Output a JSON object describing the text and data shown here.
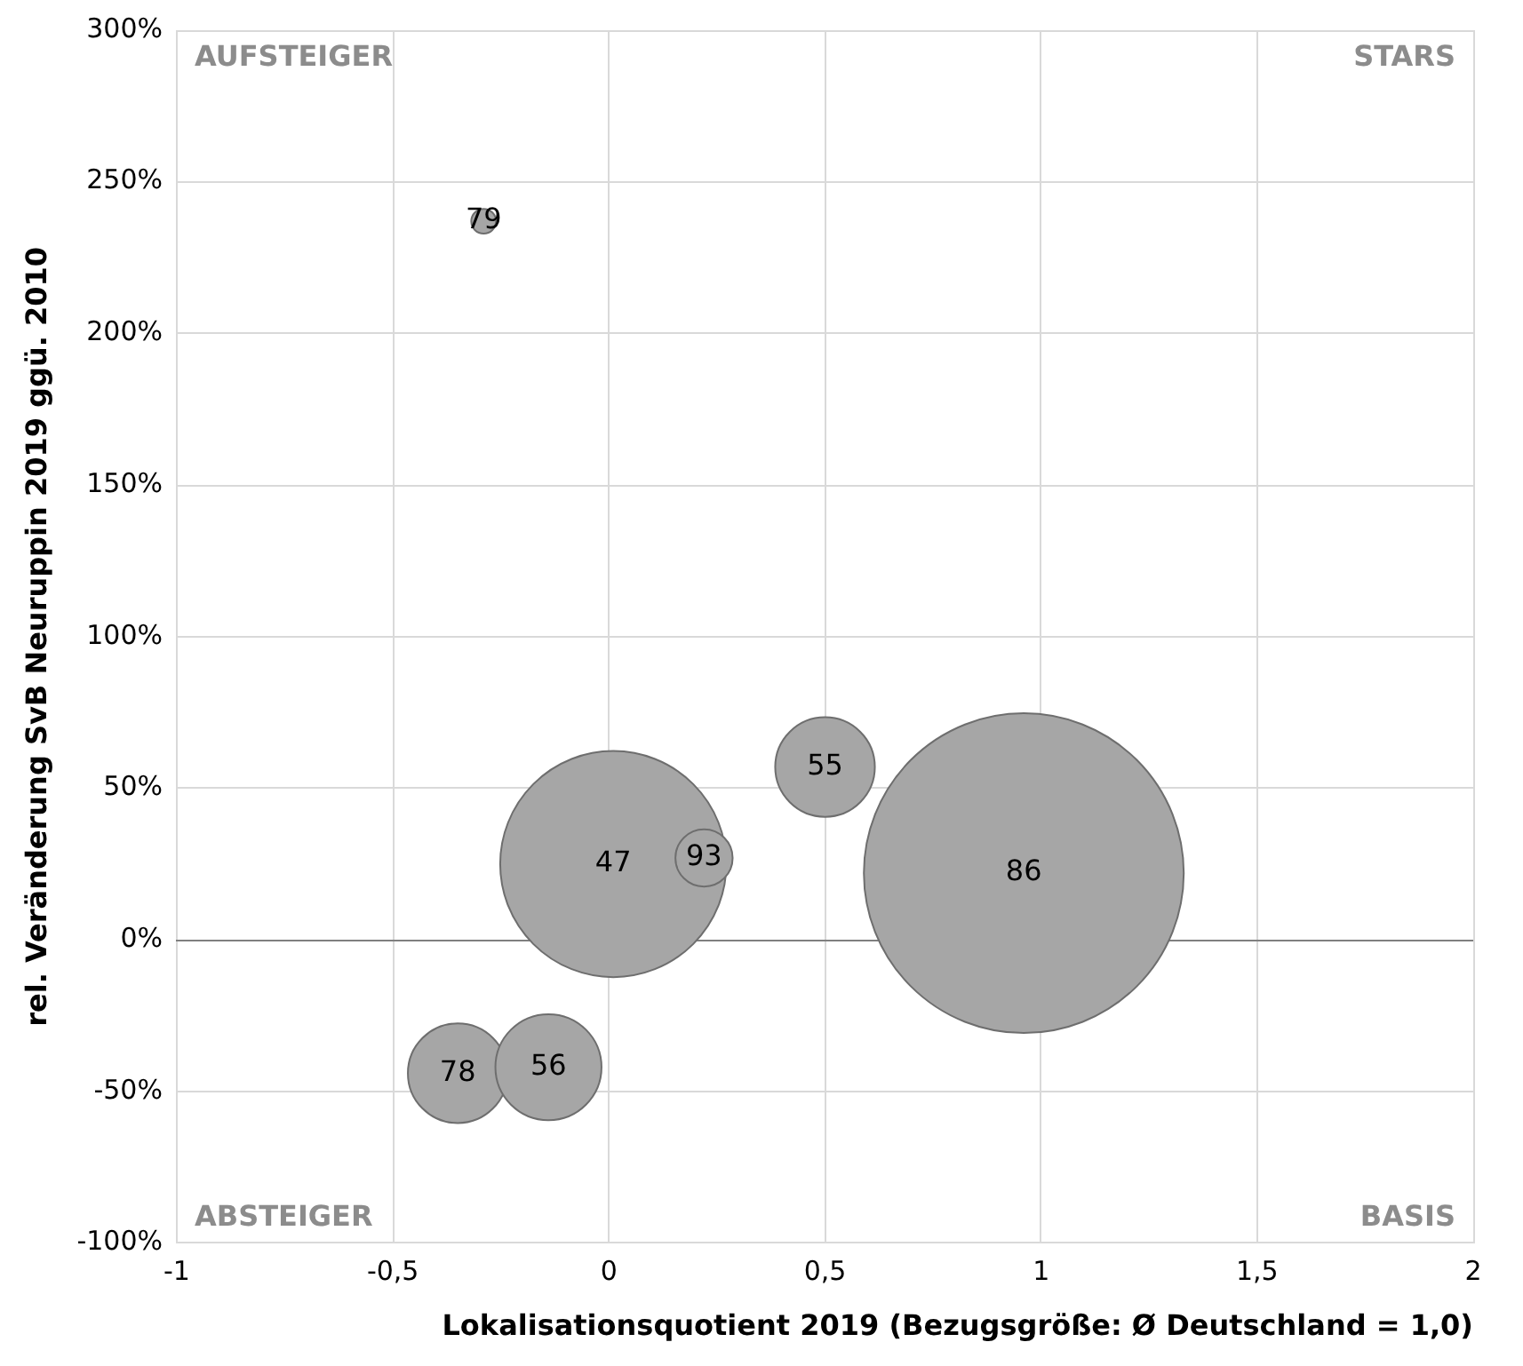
{
  "chart_data": {
    "type": "bubble",
    "xlabel": "Lokalisationsquotient 2019 (Bezugsgröße: Ø Deutschland = 1,0)",
    "ylabel": "rel. Veränderung SvB Neuruppin 2019 ggü. 2010",
    "xlim": [
      -1,
      2
    ],
    "xticks": [
      -1,
      {
        "value": -0.5,
        "label": "-0,5"
      },
      0,
      {
        "value": 0.5,
        "label": "0,5"
      },
      1,
      {
        "value": 1.5,
        "label": "1,5"
      },
      2
    ],
    "ylim": [
      -100,
      300
    ],
    "yticks": [
      {
        "value": -100,
        "label": "-100%"
      },
      {
        "value": -50,
        "label": "-50%"
      },
      {
        "value": 0,
        "label": "0%"
      },
      {
        "value": 50,
        "label": "50%"
      },
      {
        "value": 100,
        "label": "100%"
      },
      {
        "value": 150,
        "label": "150%"
      },
      {
        "value": 200,
        "label": "200%"
      },
      {
        "value": 250,
        "label": "250%"
      },
      {
        "value": 300,
        "label": "300%"
      }
    ],
    "grid": true,
    "legend": false,
    "annotations": [
      "AUFSTEIGER",
      "STARS",
      "ABSTEIGER",
      "BASIS"
    ],
    "series": [
      {
        "name": "79",
        "color": "#a6a6a6",
        "x": [
          -0.29
        ],
        "values": [
          237
        ],
        "sizes": [
          0.006
        ]
      },
      {
        "name": "47",
        "color": "#a6a6a6",
        "x": [
          0.01
        ],
        "values": [
          25
        ],
        "sizes": [
          0.5
        ]
      },
      {
        "name": "93",
        "color": "#a6a6a6",
        "x": [
          0.22
        ],
        "values": [
          27
        ],
        "sizes": [
          0.032
        ]
      },
      {
        "name": "55",
        "color": "#a6a6a6",
        "x": [
          0.5
        ],
        "values": [
          57
        ],
        "sizes": [
          0.097
        ]
      },
      {
        "name": "86",
        "color": "#a6a6a6",
        "x": [
          0.96
        ],
        "values": [
          22
        ],
        "sizes": [
          1
        ]
      },
      {
        "name": "78",
        "color": "#a6a6a6",
        "x": [
          -0.35
        ],
        "values": [
          -44
        ],
        "sizes": [
          0.097
        ]
      },
      {
        "name": "56",
        "color": "#a6a6a6",
        "x": [
          -0.14
        ],
        "values": [
          -42
        ],
        "sizes": [
          0.11
        ]
      }
    ]
  }
}
